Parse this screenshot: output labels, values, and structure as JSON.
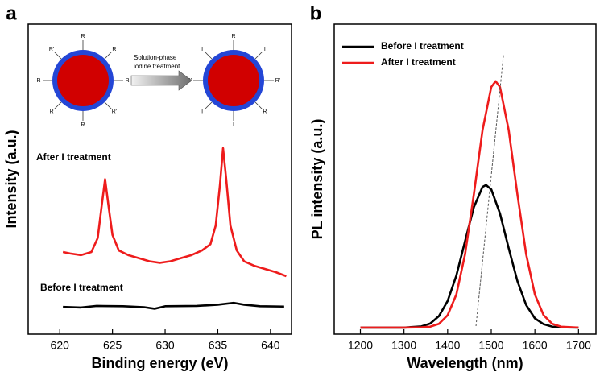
{
  "chart_data": [
    {
      "type": "line",
      "panel_label": "a",
      "xlabel": "Binding energy (eV)",
      "ylabel": "Intensity (a.u.)",
      "xlim": [
        617,
        642
      ],
      "ylim": [
        0,
        100
      ],
      "xticks": [
        620,
        625,
        630,
        635,
        640
      ],
      "series": [
        {
          "name": "After I treatment",
          "color": "#ee1c1c",
          "x": [
            620.3,
            621,
            622,
            623,
            623.6,
            624.0,
            624.3,
            624.6,
            625.0,
            625.6,
            626.5,
            627.5,
            628.5,
            629.5,
            630.5,
            631.5,
            632.5,
            633.5,
            634.3,
            634.8,
            635.2,
            635.5,
            635.8,
            636.2,
            636.8,
            637.5,
            638.5,
            639.5,
            640.5,
            641.5
          ],
          "values": [
            26.5,
            26,
            25.5,
            26.5,
            31,
            42,
            50,
            42,
            32,
            27,
            25.5,
            24.5,
            23.5,
            23,
            23.5,
            24.5,
            25.5,
            27,
            29,
            35,
            48,
            60,
            50,
            35,
            27,
            23.5,
            22,
            21,
            20,
            18.7
          ]
        },
        {
          "name": "Before I treatment",
          "color": "#000000",
          "x": [
            620.3,
            622,
            623.5,
            626,
            628,
            629,
            630,
            633,
            635,
            636.5,
            637.5,
            639,
            641.3
          ],
          "values": [
            8.8,
            8.6,
            9.1,
            9.0,
            8.7,
            8.2,
            9.0,
            9.1,
            9.5,
            10.1,
            9.5,
            9.0,
            8.9
          ]
        }
      ],
      "inset": {
        "arrow_text": [
          "Solution-phase",
          "iodine treatment"
        ],
        "left_ligands": [
          "R",
          "R",
          "R",
          "R'",
          "R",
          "R",
          "R",
          "R'"
        ],
        "right_ligands": [
          "R",
          "I",
          "R'",
          "R",
          "I",
          "I",
          "R'",
          "I"
        ]
      }
    },
    {
      "type": "line",
      "panel_label": "b",
      "xlabel": "Wavelength (nm)",
      "ylabel": "PL intensity (a.u.)",
      "xlim": [
        1140,
        1740
      ],
      "ylim": [
        0,
        100
      ],
      "xticks": [
        1200,
        1300,
        1400,
        1500,
        1600,
        1700
      ],
      "legend": "upper left",
      "series": [
        {
          "name": "Before I treatment",
          "color": "#000000",
          "x": [
            1200,
            1300,
            1340,
            1360,
            1380,
            1400,
            1420,
            1440,
            1460,
            1480,
            1488,
            1500,
            1520,
            1540,
            1560,
            1580,
            1600,
            1620,
            1640,
            1660,
            1700
          ],
          "values": [
            2.1,
            2.1,
            2.5,
            3.4,
            5.8,
            10.7,
            18.9,
            30.0,
            40.9,
            47.5,
            48.1,
            46.7,
            38.9,
            27.7,
            17.1,
            9.4,
            5.1,
            3.2,
            2.4,
            2.2,
            2.1
          ]
        },
        {
          "name": "After I treatment",
          "color": "#ee1c1c",
          "x": [
            1200,
            1300,
            1340,
            1360,
            1380,
            1400,
            1420,
            1440,
            1460,
            1480,
            1500,
            1510,
            1520,
            1540,
            1560,
            1580,
            1600,
            1620,
            1640,
            1660,
            1700
          ],
          "values": [
            2.1,
            2.1,
            2.2,
            2.4,
            3.3,
            6.1,
            12.8,
            25.8,
            45.0,
            65.8,
            79.7,
            81.6,
            79.7,
            65.8,
            45.0,
            25.8,
            12.8,
            6.1,
            3.3,
            2.4,
            2.1
          ]
        }
      ],
      "guide_line": {
        "x": [
          1465,
          1528
        ],
        "values": [
          2.6,
          90
        ],
        "color": "#555555"
      }
    }
  ]
}
